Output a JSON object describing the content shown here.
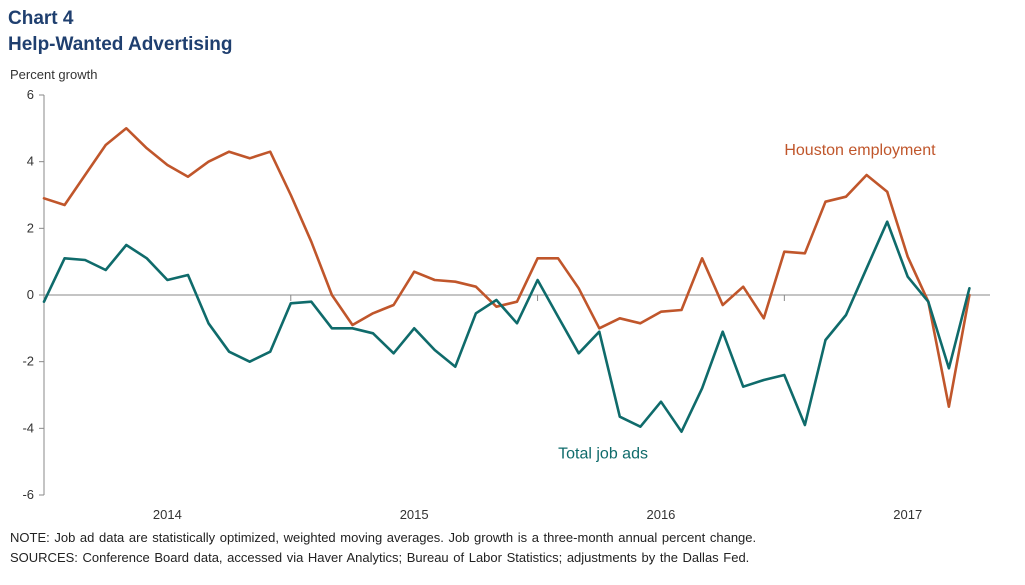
{
  "header": {
    "chart_number": "Chart 4",
    "title": "Help-Wanted Advertising"
  },
  "colors": {
    "houston": "#c0562b",
    "job_ads": "#0f6b6b",
    "title": "#1f3f6f",
    "axis": "#888888"
  },
  "chart_data": {
    "type": "line",
    "title": "Help-Wanted Advertising",
    "ylabel": "Percent growth",
    "xlabel": "",
    "ylim": [
      -6,
      6
    ],
    "yticks": [
      6,
      4,
      2,
      0,
      -2,
      -4,
      -6
    ],
    "xlim": [
      "2013-07",
      "2017-05"
    ],
    "xticks": [
      {
        "label": "2014",
        "x": "2014-01"
      },
      {
        "label": "2015",
        "x": "2015-01"
      },
      {
        "label": "2016",
        "x": "2016-01"
      },
      {
        "label": "2017",
        "x": "2017-01"
      }
    ],
    "grid": false,
    "series": [
      {
        "name": "Houston employment",
        "x": [
          "2013-07",
          "2013-08",
          "2013-09",
          "2013-10",
          "2013-11",
          "2013-12",
          "2014-01",
          "2014-02",
          "2014-03",
          "2014-04",
          "2014-05",
          "2014-06",
          "2014-07",
          "2014-08",
          "2014-09",
          "2014-10",
          "2014-11",
          "2014-12",
          "2015-01",
          "2015-02",
          "2015-03",
          "2015-04",
          "2015-05",
          "2015-06",
          "2015-07",
          "2015-08",
          "2015-09",
          "2015-10",
          "2015-11",
          "2015-12",
          "2016-01",
          "2016-02",
          "2016-03",
          "2016-04",
          "2016-05",
          "2016-06",
          "2016-07",
          "2016-08",
          "2016-09",
          "2016-10",
          "2016-11",
          "2016-12",
          "2017-01",
          "2017-02",
          "2017-03",
          "2017-04"
        ],
        "values": [
          2.9,
          2.7,
          3.6,
          4.5,
          5.0,
          4.4,
          3.9,
          3.55,
          4.0,
          4.3,
          4.1,
          4.3,
          3.0,
          1.6,
          0.0,
          -0.9,
          -0.55,
          -0.3,
          0.7,
          0.45,
          0.4,
          0.25,
          -0.35,
          -0.2,
          1.1,
          1.1,
          0.2,
          -1.0,
          -0.7,
          -0.85,
          -0.5,
          -0.45,
          1.1,
          -0.3,
          0.25,
          -0.7,
          1.3,
          1.25,
          2.8,
          2.95,
          3.6,
          3.1,
          1.15,
          -0.2,
          -3.35,
          0.0
        ]
      },
      {
        "name": "Total job ads",
        "x": [
          "2013-07",
          "2013-08",
          "2013-09",
          "2013-10",
          "2013-11",
          "2013-12",
          "2014-01",
          "2014-02",
          "2014-03",
          "2014-04",
          "2014-05",
          "2014-06",
          "2014-07",
          "2014-08",
          "2014-09",
          "2014-10",
          "2014-11",
          "2014-12",
          "2015-01",
          "2015-02",
          "2015-03",
          "2015-04",
          "2015-05",
          "2015-06",
          "2015-07",
          "2015-08",
          "2015-09",
          "2015-10",
          "2015-11",
          "2015-12",
          "2016-01",
          "2016-02",
          "2016-03",
          "2016-04",
          "2016-05",
          "2016-06",
          "2016-07",
          "2016-08",
          "2016-09",
          "2016-10",
          "2016-11",
          "2016-12",
          "2017-01",
          "2017-02",
          "2017-03",
          "2017-04"
        ],
        "values": [
          -0.2,
          1.1,
          1.05,
          0.75,
          1.5,
          1.1,
          0.45,
          0.6,
          -0.85,
          -1.7,
          -2.0,
          -1.7,
          -0.25,
          -0.2,
          -1.0,
          -1.0,
          -1.15,
          -1.75,
          -1.0,
          -1.65,
          -2.15,
          -0.55,
          -0.15,
          -0.85,
          0.45,
          -0.65,
          -1.75,
          -1.1,
          -3.65,
          -3.95,
          -3.2,
          -4.1,
          -2.8,
          -1.1,
          -2.75,
          -2.55,
          -2.4,
          -3.9,
          -1.35,
          -0.6,
          0.8,
          2.2,
          0.55,
          -0.2,
          -2.2,
          0.2
        ]
      }
    ],
    "annotations": [
      {
        "text": "Houston employment",
        "x": "2016-07",
        "y": 4.2,
        "series": 0
      },
      {
        "text": "Total job ads",
        "x": "2015-08",
        "y": -4.9,
        "series": 1
      }
    ]
  },
  "footnotes": {
    "note": "NOTE: Job ad data are statistically optimized, weighted moving averages. Job growth is a three-month annual percent change.",
    "sources": "SOURCES: Conference Board data, accessed via Haver Analytics; Bureau of Labor Statistics; adjustments by the Dallas Fed."
  }
}
